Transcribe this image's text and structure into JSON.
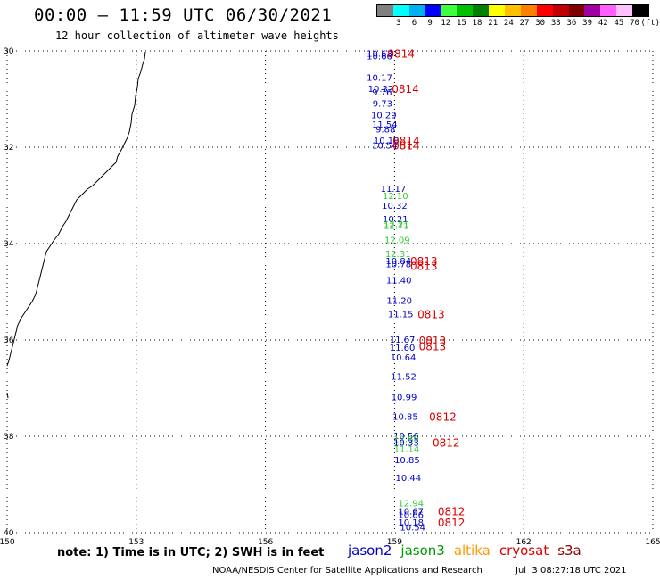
{
  "header": {
    "title": "00:00 – 11:59 UTC 06/30/2021",
    "subtitle": "12 hour collection of altimeter wave heights"
  },
  "color_scale": {
    "colors": [
      "#808080",
      "#00ffff",
      "#00b0f0",
      "#0000ff",
      "#40ff40",
      "#00c000",
      "#008000",
      "#ffff00",
      "#ffc000",
      "#ff8000",
      "#ff0000",
      "#c00000",
      "#800000",
      "#a000a0",
      "#ff60ff",
      "#ffc0ff",
      "#000000"
    ],
    "labels": [
      "3",
      "6",
      "9",
      "12",
      "15",
      "18",
      "21",
      "24",
      "27",
      "30",
      "33",
      "36",
      "39",
      "42",
      "45",
      "70",
      "(ft)"
    ]
  },
  "axes": {
    "lat_labels": [
      "30",
      "32",
      "34",
      "36",
      "38",
      "40"
    ],
    "lon_labels": [
      "150",
      "153",
      "156",
      "159",
      "162",
      "165"
    ]
  },
  "chart_data": {
    "type": "scatter",
    "x_range": [
      150,
      165
    ],
    "y_range": [
      -30,
      -40
    ],
    "lat_ticks": [
      -30,
      -32,
      -34,
      -36,
      -38,
      -40
    ],
    "lon_ticks": [
      150,
      153,
      156,
      159,
      162,
      165
    ],
    "grid": true,
    "wave_heights": [
      {
        "lat": -30.05,
        "lon": 158.65,
        "value": "10.63",
        "sat": "jason2"
      },
      {
        "lat": -30.1,
        "lon": 158.65,
        "value": "10.66",
        "sat": "jason2"
      },
      {
        "lat": -30.55,
        "lon": 158.65,
        "value": "10.17",
        "sat": "jason2"
      },
      {
        "lat": -30.78,
        "lon": 158.68,
        "value": "10.32",
        "sat": "jason2"
      },
      {
        "lat": -30.85,
        "lon": 158.71,
        "value": "9.76",
        "sat": "jason2"
      },
      {
        "lat": -31.08,
        "lon": 158.72,
        "value": "9.73",
        "sat": "jason2"
      },
      {
        "lat": -31.32,
        "lon": 158.75,
        "value": "10.29",
        "sat": "jason2"
      },
      {
        "lat": -31.52,
        "lon": 158.77,
        "value": "11.54",
        "sat": "jason2"
      },
      {
        "lat": -31.62,
        "lon": 158.79,
        "value": "9.88",
        "sat": "jason2"
      },
      {
        "lat": -31.85,
        "lon": 158.81,
        "value": "10.18",
        "sat": "jason2"
      },
      {
        "lat": -31.95,
        "lon": 158.77,
        "value": "10.54",
        "sat": "jason2"
      },
      {
        "lat": -32.85,
        "lon": 158.97,
        "value": "11.17",
        "sat": "jason2"
      },
      {
        "lat": -33.0,
        "lon": 159.02,
        "value": "12.10",
        "sat": "jason3"
      },
      {
        "lat": -33.2,
        "lon": 159.0,
        "value": "10.32",
        "sat": "jason2"
      },
      {
        "lat": -33.48,
        "lon": 159.02,
        "value": "10.21",
        "sat": "jason2"
      },
      {
        "lat": -33.58,
        "lon": 159.04,
        "value": "12.21",
        "sat": "jason3"
      },
      {
        "lat": -33.62,
        "lon": 159.04,
        "value": "12.71",
        "sat": "jason3"
      },
      {
        "lat": -33.92,
        "lon": 159.06,
        "value": "12.09",
        "sat": "jason3"
      },
      {
        "lat": -34.2,
        "lon": 159.08,
        "value": "12.31",
        "sat": "jason3"
      },
      {
        "lat": -34.35,
        "lon": 159.09,
        "value": "10.84",
        "sat": "jason2"
      },
      {
        "lat": -34.42,
        "lon": 159.09,
        "value": "10.78",
        "sat": "jason2"
      },
      {
        "lat": -34.75,
        "lon": 159.1,
        "value": "11.40",
        "sat": "jason2"
      },
      {
        "lat": -35.18,
        "lon": 159.11,
        "value": "11.20",
        "sat": "jason2"
      },
      {
        "lat": -35.45,
        "lon": 159.14,
        "value": "11.15",
        "sat": "jason2"
      },
      {
        "lat": -35.98,
        "lon": 159.18,
        "value": "11.67",
        "sat": "jason2"
      },
      {
        "lat": -36.15,
        "lon": 159.18,
        "value": "11.60",
        "sat": "jason2"
      },
      {
        "lat": -36.35,
        "lon": 159.2,
        "value": "10.64",
        "sat": "jason2"
      },
      {
        "lat": -36.75,
        "lon": 159.21,
        "value": "11.52",
        "sat": "jason2"
      },
      {
        "lat": -37.18,
        "lon": 159.22,
        "value": "10.99",
        "sat": "jason2"
      },
      {
        "lat": -37.58,
        "lon": 159.25,
        "value": "10.85",
        "sat": "jason2"
      },
      {
        "lat": -37.98,
        "lon": 159.27,
        "value": "10.56",
        "sat": "jason2"
      },
      {
        "lat": -38.05,
        "lon": 159.27,
        "value": "12.69",
        "sat": "jason3"
      },
      {
        "lat": -38.12,
        "lon": 159.27,
        "value": "10.33",
        "sat": "jason2"
      },
      {
        "lat": -38.25,
        "lon": 159.28,
        "value": "11.14",
        "sat": "jason3"
      },
      {
        "lat": -38.48,
        "lon": 159.29,
        "value": "10.85",
        "sat": "jason2"
      },
      {
        "lat": -38.85,
        "lon": 159.32,
        "value": "10.44",
        "sat": "jason2"
      },
      {
        "lat": -39.38,
        "lon": 159.38,
        "value": "12.94",
        "sat": "jason3"
      },
      {
        "lat": -39.55,
        "lon": 159.38,
        "value": "10.67",
        "sat": "jason2"
      },
      {
        "lat": -39.62,
        "lon": 159.38,
        "value": "10.66",
        "sat": "jason2"
      },
      {
        "lat": -39.78,
        "lon": 159.38,
        "value": "10.18",
        "sat": "jason2"
      },
      {
        "lat": -39.88,
        "lon": 159.42,
        "value": "10.54",
        "sat": "jason2"
      }
    ],
    "time_labels": [
      {
        "lat": -30.05,
        "lon": 159.15,
        "value": "0814"
      },
      {
        "lat": -30.78,
        "lon": 159.25,
        "value": "0814"
      },
      {
        "lat": -31.85,
        "lon": 159.27,
        "value": "0814"
      },
      {
        "lat": -31.95,
        "lon": 159.27,
        "value": "0814"
      },
      {
        "lat": -34.35,
        "lon": 159.68,
        "value": "0813"
      },
      {
        "lat": -34.45,
        "lon": 159.68,
        "value": "0813"
      },
      {
        "lat": -35.45,
        "lon": 159.85,
        "value": "0813"
      },
      {
        "lat": -36.0,
        "lon": 159.88,
        "value": "0813"
      },
      {
        "lat": -36.12,
        "lon": 159.88,
        "value": "0813"
      },
      {
        "lat": -37.58,
        "lon": 160.12,
        "value": "0812"
      },
      {
        "lat": -38.12,
        "lon": 160.2,
        "value": "0812"
      },
      {
        "lat": -39.55,
        "lon": 160.32,
        "value": "0812"
      },
      {
        "lat": -39.78,
        "lon": 160.32,
        "value": "0812"
      }
    ]
  },
  "note": "note: 1) Time is in UTC; 2) SWH is in feet",
  "satellites": [
    {
      "name": "jason2",
      "color": "#0000cc"
    },
    {
      "name": "jason3",
      "color": "#009900"
    },
    {
      "name": "altika",
      "color": "#ff9900"
    },
    {
      "name": "cryosat",
      "color": "#dd0000"
    },
    {
      "name": "s3a",
      "color": "#880000"
    }
  ],
  "credit": "NOAA/NESDIS Center for Satellite Applications and Research",
  "timestamp": "Jul  3 08:27:18 UTC 2021"
}
